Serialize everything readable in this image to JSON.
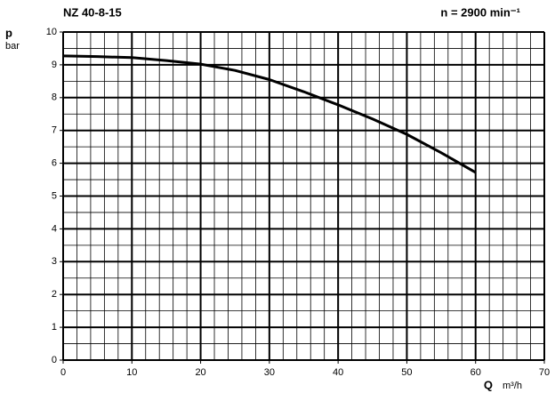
{
  "chart_data": {
    "type": "line",
    "title": "NZ 40-8-15",
    "subtitle": "n = 2900 min⁻¹",
    "y_label": "p",
    "y_unit": "bar",
    "x_label": "Q",
    "x_unit": "m³/h",
    "x": [
      0,
      5,
      10,
      15,
      20,
      25,
      30,
      35,
      40,
      45,
      50,
      55,
      60
    ],
    "series": [
      {
        "color": "#000000",
        "values": [
          9.27,
          9.25,
          9.22,
          9.13,
          9.02,
          8.83,
          8.55,
          8.18,
          7.78,
          7.35,
          6.88,
          6.32,
          5.72
        ]
      }
    ],
    "xlim": [
      0,
      70
    ],
    "xticks": [
      0,
      10,
      20,
      30,
      40,
      50,
      60,
      70
    ],
    "ylim": [
      0,
      10
    ],
    "yticks": [
      0,
      1,
      2,
      3,
      4,
      5,
      6,
      7,
      8,
      9,
      10
    ],
    "grid": true
  }
}
